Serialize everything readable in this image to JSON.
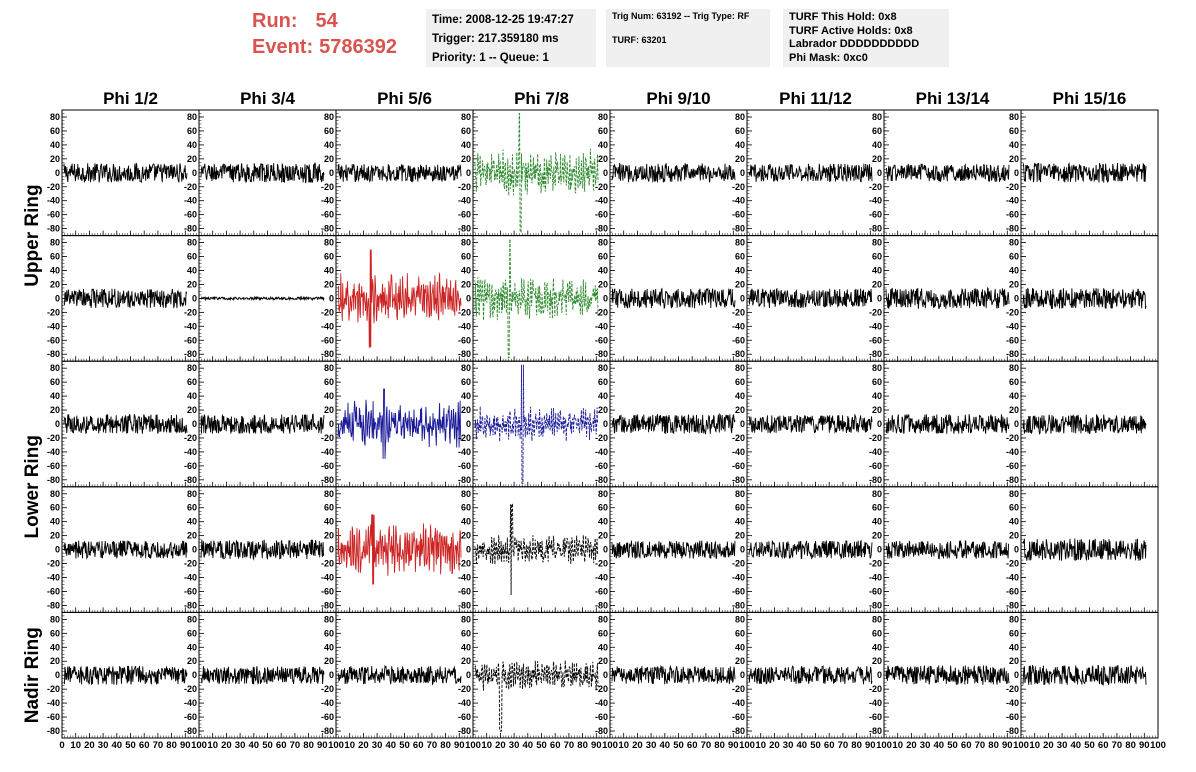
{
  "header": {
    "run_label": "Run:",
    "run_value": "54",
    "event_label": "Event:",
    "event_value": "5786392",
    "time": "Time: 2008-12-25 19:47:27",
    "trigger": "Trigger: 217.359180 ms",
    "priority": "Priority: 1 -- Queue: 1",
    "trig_num": "Trig Num: 63192 -- Trig Type: RF",
    "turf": "TURF: 63201",
    "turf_this_hold": "TURF This Hold: 0x8",
    "turf_active_holds": "TURF Active Holds: 0x8",
    "labrador": "Labrador DDDDDDDDDD",
    "phi_mask": "Phi Mask: 0xc0"
  },
  "colors": {
    "header_red": "#d9534f",
    "trace_black": "#000000",
    "trace_green": "#2e8b2e",
    "trace_red": "#cc2222",
    "trace_blue": "#1a1a99",
    "info_box_bg": "#f0f0f0"
  },
  "chart_data": {
    "type": "line",
    "title": "",
    "columns": [
      "Phi 1/2",
      "Phi 3/4",
      "Phi 5/6",
      "Phi 7/8",
      "Phi 9/10",
      "Phi 11/12",
      "Phi 13/14",
      "Phi 15/16"
    ],
    "ring_labels": [
      {
        "label": "Upper Ring",
        "rows": [
          0,
          1
        ]
      },
      {
        "label": "Lower Ring",
        "rows": [
          2,
          3
        ]
      },
      {
        "label": "Nadir Ring",
        "rows": [
          4
        ]
      }
    ],
    "xlim": [
      0,
      100
    ],
    "ylim": [
      -90,
      90
    ],
    "x_ticks": [
      0,
      10,
      20,
      30,
      40,
      50,
      60,
      70,
      80,
      90,
      100
    ],
    "y_ticks": [
      -80,
      -60,
      -40,
      -20,
      0,
      20,
      40,
      60,
      80
    ],
    "n_rows": 5,
    "panels": [
      {
        "row": 0,
        "col": 0,
        "color": "black",
        "style": "solid",
        "amplitude": 14
      },
      {
        "row": 0,
        "col": 1,
        "color": "black",
        "style": "solid",
        "amplitude": 14
      },
      {
        "row": 0,
        "col": 2,
        "color": "black",
        "style": "solid",
        "amplitude": 13
      },
      {
        "row": 0,
        "col": 3,
        "color": "green",
        "style": "dashed",
        "amplitude": 22,
        "peak": 85
      },
      {
        "row": 0,
        "col": 4,
        "color": "black",
        "style": "solid",
        "amplitude": 14
      },
      {
        "row": 0,
        "col": 5,
        "color": "black",
        "style": "solid",
        "amplitude": 13
      },
      {
        "row": 0,
        "col": 6,
        "color": "black",
        "style": "solid",
        "amplitude": 13
      },
      {
        "row": 0,
        "col": 7,
        "color": "black",
        "style": "solid",
        "amplitude": 14
      },
      {
        "row": 1,
        "col": 0,
        "color": "black",
        "style": "solid",
        "amplitude": 14
      },
      {
        "row": 1,
        "col": 1,
        "color": "black",
        "style": "solid",
        "amplitude": 2
      },
      {
        "row": 1,
        "col": 2,
        "color": "red",
        "style": "solid",
        "amplitude": 24,
        "peak": 70
      },
      {
        "row": 1,
        "col": 3,
        "color": "green",
        "style": "dashed",
        "amplitude": 20,
        "peak": 85
      },
      {
        "row": 1,
        "col": 4,
        "color": "black",
        "style": "solid",
        "amplitude": 14
      },
      {
        "row": 1,
        "col": 5,
        "color": "black",
        "style": "solid",
        "amplitude": 14
      },
      {
        "row": 1,
        "col": 6,
        "color": "black",
        "style": "solid",
        "amplitude": 15
      },
      {
        "row": 1,
        "col": 7,
        "color": "black",
        "style": "solid",
        "amplitude": 15
      },
      {
        "row": 2,
        "col": 0,
        "color": "black",
        "style": "solid",
        "amplitude": 14
      },
      {
        "row": 2,
        "col": 1,
        "color": "black",
        "style": "solid",
        "amplitude": 14
      },
      {
        "row": 2,
        "col": 2,
        "color": "blue",
        "style": "solid",
        "amplitude": 22,
        "peak": 50
      },
      {
        "row": 2,
        "col": 3,
        "color": "blue",
        "style": "dashed",
        "amplitude": 16,
        "peak": 85
      },
      {
        "row": 2,
        "col": 4,
        "color": "black",
        "style": "solid",
        "amplitude": 14
      },
      {
        "row": 2,
        "col": 5,
        "color": "black",
        "style": "solid",
        "amplitude": 13
      },
      {
        "row": 2,
        "col": 6,
        "color": "black",
        "style": "solid",
        "amplitude": 14
      },
      {
        "row": 2,
        "col": 7,
        "color": "black",
        "style": "solid",
        "amplitude": 14
      },
      {
        "row": 3,
        "col": 0,
        "color": "black",
        "style": "solid",
        "amplitude": 13
      },
      {
        "row": 3,
        "col": 1,
        "color": "black",
        "style": "solid",
        "amplitude": 14
      },
      {
        "row": 3,
        "col": 2,
        "color": "red",
        "style": "solid",
        "amplitude": 24,
        "peak": 50
      },
      {
        "row": 3,
        "col": 3,
        "color": "black",
        "style": "dashed",
        "amplitude": 14,
        "peak": 65
      },
      {
        "row": 3,
        "col": 4,
        "color": "black",
        "style": "solid",
        "amplitude": 13
      },
      {
        "row": 3,
        "col": 5,
        "color": "black",
        "style": "solid",
        "amplitude": 13
      },
      {
        "row": 3,
        "col": 6,
        "color": "black",
        "style": "solid",
        "amplitude": 13
      },
      {
        "row": 3,
        "col": 7,
        "color": "black",
        "style": "solid",
        "amplitude": 16
      },
      {
        "row": 4,
        "col": 0,
        "color": "black",
        "style": "solid",
        "amplitude": 14
      },
      {
        "row": 4,
        "col": 1,
        "color": "black",
        "style": "solid",
        "amplitude": 13
      },
      {
        "row": 4,
        "col": 2,
        "color": "black",
        "style": "solid",
        "amplitude": 13
      },
      {
        "row": 4,
        "col": 3,
        "color": "black",
        "style": "dashed",
        "amplitude": 14,
        "peak": 80
      },
      {
        "row": 4,
        "col": 4,
        "color": "black",
        "style": "solid",
        "amplitude": 13
      },
      {
        "row": 4,
        "col": 5,
        "color": "black",
        "style": "solid",
        "amplitude": 13
      },
      {
        "row": 4,
        "col": 6,
        "color": "black",
        "style": "solid",
        "amplitude": 14
      },
      {
        "row": 4,
        "col": 7,
        "color": "black",
        "style": "solid",
        "amplitude": 14
      }
    ]
  }
}
